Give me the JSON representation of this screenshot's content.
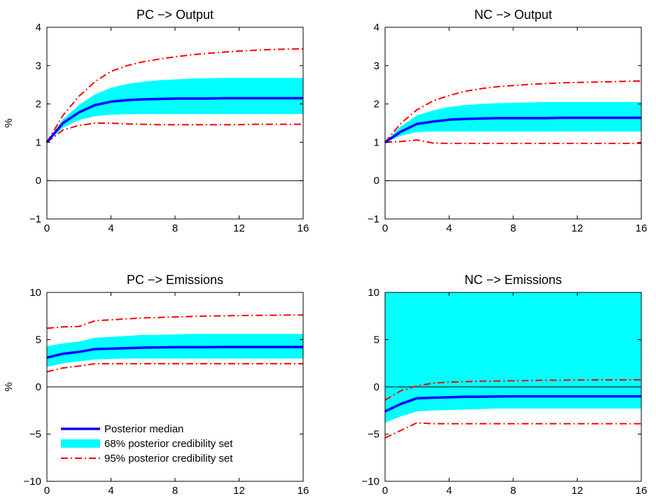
{
  "chart_data": [
    {
      "type": "line",
      "title": "PC −> Output",
      "xlabel": "",
      "ylabel": "%",
      "xlim": [
        0,
        16
      ],
      "ylim": [
        -1,
        4
      ],
      "xticks": [
        0,
        4,
        8,
        12,
        16
      ],
      "xtick_labels": [
        "0",
        "4",
        "8",
        "12",
        "16"
      ],
      "yticks": [
        -1,
        0,
        1,
        2,
        3,
        4
      ],
      "ytick_labels": [
        "−1",
        "0",
        "1",
        "2",
        "3",
        "4"
      ],
      "zero_line": true,
      "x": [
        0,
        1,
        2,
        3,
        4,
        5,
        6,
        7,
        8,
        9,
        10,
        11,
        12,
        13,
        14,
        15,
        16
      ],
      "series": [
        {
          "name": "Posterior median",
          "style": "solid-thick",
          "color": "#0000ff",
          "values": [
            1.0,
            1.5,
            1.78,
            1.97,
            2.06,
            2.1,
            2.12,
            2.13,
            2.14,
            2.14,
            2.14,
            2.15,
            2.15,
            2.15,
            2.15,
            2.15,
            2.15
          ]
        },
        {
          "name": "68% posterior credibility set",
          "style": "band",
          "color": "#00ffff",
          "lower": [
            1.0,
            1.38,
            1.58,
            1.68,
            1.72,
            1.73,
            1.74,
            1.74,
            1.74,
            1.74,
            1.74,
            1.74,
            1.74,
            1.74,
            1.74,
            1.74,
            1.74
          ],
          "upper": [
            1.0,
            1.6,
            1.97,
            2.25,
            2.42,
            2.52,
            2.58,
            2.62,
            2.64,
            2.66,
            2.67,
            2.68,
            2.68,
            2.68,
            2.68,
            2.68,
            2.68
          ]
        },
        {
          "name": "95% posterior credibility set",
          "style": "dashdot",
          "color": "#ff0000",
          "lower": [
            1.0,
            1.32,
            1.44,
            1.5,
            1.5,
            1.48,
            1.47,
            1.46,
            1.46,
            1.46,
            1.46,
            1.46,
            1.46,
            1.47,
            1.47,
            1.47,
            1.47
          ],
          "upper": [
            1.0,
            1.7,
            2.2,
            2.58,
            2.85,
            3.0,
            3.1,
            3.17,
            3.23,
            3.28,
            3.32,
            3.35,
            3.38,
            3.4,
            3.42,
            3.43,
            3.44
          ]
        }
      ]
    },
    {
      "type": "line",
      "title": "NC −> Output",
      "xlabel": "",
      "ylabel": "",
      "xlim": [
        0,
        16
      ],
      "ylim": [
        -1,
        4
      ],
      "xticks": [
        0,
        4,
        8,
        12,
        16
      ],
      "xtick_labels": [
        "0",
        "4",
        "8",
        "12",
        "16"
      ],
      "yticks": [
        -1,
        0,
        1,
        2,
        3,
        4
      ],
      "ytick_labels": [
        "−1",
        "0",
        "1",
        "2",
        "3",
        "4"
      ],
      "zero_line": true,
      "x": [
        0,
        1,
        2,
        3,
        4,
        5,
        6,
        7,
        8,
        9,
        10,
        11,
        12,
        13,
        14,
        15,
        16
      ],
      "series": [
        {
          "name": "Posterior median",
          "style": "solid-thick",
          "color": "#0000ff",
          "values": [
            1.0,
            1.28,
            1.48,
            1.54,
            1.59,
            1.61,
            1.62,
            1.63,
            1.63,
            1.63,
            1.63,
            1.64,
            1.64,
            1.64,
            1.64,
            1.64,
            1.64
          ]
        },
        {
          "name": "68% posterior credibility set",
          "style": "band",
          "color": "#00ffff",
          "lower": [
            1.0,
            1.17,
            1.27,
            1.28,
            1.28,
            1.28,
            1.28,
            1.28,
            1.28,
            1.28,
            1.28,
            1.28,
            1.28,
            1.28,
            1.28,
            1.28,
            1.28
          ],
          "upper": [
            1.0,
            1.42,
            1.7,
            1.83,
            1.92,
            1.97,
            2.0,
            2.02,
            2.03,
            2.04,
            2.05,
            2.05,
            2.05,
            2.05,
            2.05,
            2.05,
            2.05
          ]
        },
        {
          "name": "95% posterior credibility set",
          "style": "dashdot",
          "color": "#ff0000",
          "lower": [
            1.0,
            1.02,
            1.06,
            0.98,
            0.97,
            0.97,
            0.97,
            0.97,
            0.97,
            0.97,
            0.97,
            0.97,
            0.97,
            0.97,
            0.97,
            0.97,
            0.97
          ],
          "upper": [
            1.0,
            1.5,
            1.85,
            2.08,
            2.22,
            2.33,
            2.4,
            2.45,
            2.48,
            2.51,
            2.53,
            2.55,
            2.56,
            2.57,
            2.58,
            2.59,
            2.6
          ]
        }
      ]
    },
    {
      "type": "line",
      "title": "PC −> Emissions",
      "xlabel": "",
      "ylabel": "%",
      "xlim": [
        0,
        16
      ],
      "ylim": [
        -10,
        10
      ],
      "xticks": [
        0,
        4,
        8,
        12,
        16
      ],
      "xtick_labels": [
        "0",
        "4",
        "8",
        "12",
        "16"
      ],
      "yticks": [
        -10,
        -5,
        0,
        5,
        10
      ],
      "ytick_labels": [
        "−10",
        "−5",
        "0",
        "5",
        "10"
      ],
      "zero_line": true,
      "x": [
        0,
        1,
        2,
        3,
        4,
        5,
        6,
        7,
        8,
        9,
        10,
        11,
        12,
        13,
        14,
        15,
        16
      ],
      "series": [
        {
          "name": "Posterior median",
          "style": "solid-thick",
          "color": "#0000ff",
          "values": [
            3.1,
            3.5,
            3.7,
            4.0,
            4.05,
            4.1,
            4.15,
            4.18,
            4.2,
            4.2,
            4.2,
            4.22,
            4.22,
            4.22,
            4.22,
            4.22,
            4.22
          ]
        },
        {
          "name": "68% posterior credibility set",
          "style": "band",
          "color": "#00ffff",
          "lower": [
            2.1,
            2.5,
            2.7,
            2.9,
            2.95,
            3.0,
            3.0,
            3.0,
            3.0,
            3.0,
            3.0,
            3.0,
            3.0,
            3.0,
            3.0,
            3.0,
            3.0
          ],
          "upper": [
            4.3,
            4.6,
            4.8,
            5.2,
            5.3,
            5.4,
            5.5,
            5.5,
            5.55,
            5.6,
            5.6,
            5.6,
            5.6,
            5.6,
            5.6,
            5.6,
            5.6
          ]
        },
        {
          "name": "95% posterior credibility set",
          "style": "dashdot",
          "color": "#ff0000",
          "lower": [
            1.6,
            2.0,
            2.2,
            2.45,
            2.45,
            2.45,
            2.45,
            2.45,
            2.45,
            2.45,
            2.45,
            2.45,
            2.45,
            2.45,
            2.45,
            2.45,
            2.45
          ],
          "upper": [
            6.2,
            6.35,
            6.4,
            7.0,
            7.1,
            7.2,
            7.3,
            7.35,
            7.4,
            7.45,
            7.5,
            7.52,
            7.55,
            7.57,
            7.58,
            7.6,
            7.6
          ]
        }
      ]
    },
    {
      "type": "line",
      "title": "NC −> Emissions",
      "xlabel": "",
      "ylabel": "",
      "xlim": [
        0,
        16
      ],
      "ylim": [
        -10,
        10
      ],
      "xticks": [
        0,
        4,
        8,
        12,
        16
      ],
      "xtick_labels": [
        "0",
        "4",
        "8",
        "12",
        "16"
      ],
      "yticks": [
        -10,
        -5,
        0,
        5,
        10
      ],
      "ytick_labels": [
        "−10",
        "−5",
        "0",
        "5",
        "10"
      ],
      "zero_line": true,
      "x": [
        0,
        1,
        2,
        3,
        4,
        5,
        6,
        7,
        8,
        9,
        10,
        11,
        12,
        13,
        14,
        15,
        16
      ],
      "series": [
        {
          "name": "Posterior median",
          "style": "solid-thick",
          "color": "#0000ff",
          "values": [
            -2.6,
            -1.8,
            -1.2,
            -1.15,
            -1.1,
            -1.05,
            -1.05,
            -1.02,
            -1.0,
            -1.0,
            -1.0,
            -1.0,
            -1.0,
            -1.0,
            -1.0,
            -1.0,
            -1.0
          ]
        },
        {
          "name": "68% posterior credibility set",
          "style": "band",
          "color": "#00ffff",
          "lower": [
            -3.8,
            -3.1,
            -2.6,
            -2.5,
            -2.45,
            -2.4,
            -2.35,
            -2.3,
            -2.3,
            -2.3,
            -2.3,
            -2.3,
            -2.3,
            -2.3,
            -2.3,
            -2.3,
            -2.3
          ]
        },
        {
          "name": "95% posterior credibility set",
          "style": "dashdot",
          "color": "#ff0000",
          "lower": [
            -5.4,
            -4.6,
            -3.8,
            -3.9,
            -3.9,
            -3.9,
            -3.9,
            -3.9,
            -3.9,
            -3.9,
            -3.9,
            -3.9,
            -3.9,
            -3.9,
            -3.9,
            -3.9,
            -3.9
          ],
          "upper": [
            -1.4,
            -0.4,
            0.1,
            0.4,
            0.5,
            0.55,
            0.6,
            0.62,
            0.65,
            0.67,
            0.7,
            0.7,
            0.72,
            0.73,
            0.75,
            0.75,
            0.75
          ]
        }
      ]
    }
  ],
  "legend": {
    "placement": "lower-left of PC −> Emissions panel",
    "entries": [
      {
        "label": "Posterior median",
        "style": "solid-thick",
        "color": "#0000ff"
      },
      {
        "label": "68% posterior credibility set",
        "style": "band",
        "color": "#00ffff"
      },
      {
        "label": "95% posterior credibility set",
        "style": "dashdot",
        "color": "#ff0000"
      }
    ]
  }
}
